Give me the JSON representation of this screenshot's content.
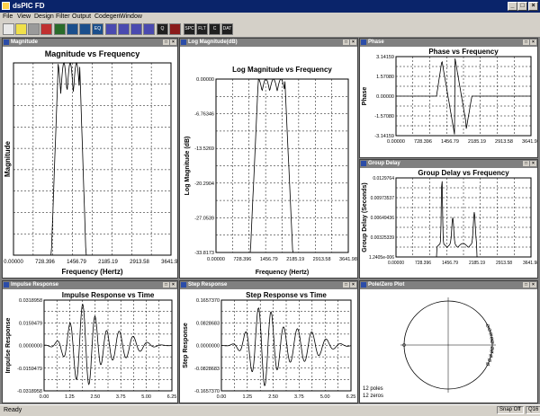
{
  "app": {
    "title": "dsPIC FD"
  },
  "menu": [
    "File",
    "View",
    "Design",
    "Filter",
    "Output",
    "Codegen",
    "Window"
  ],
  "toolbar": [
    {
      "icon": "new-icon",
      "color": "#e8e8e8",
      "label": ""
    },
    {
      "icon": "bulb-icon",
      "color": "#f0e04a",
      "label": ""
    },
    {
      "icon": "print-icon",
      "color": "#9a9a9a",
      "label": ""
    },
    {
      "icon": "stop-icon",
      "color": "#c03030",
      "label": ""
    },
    {
      "icon": "iir-icon",
      "color": "#2a6b2a",
      "label": ""
    },
    {
      "icon": "fir-icon",
      "color": "#1b4f8c",
      "label": ""
    },
    {
      "icon": "view-icon",
      "color": "#1b4f8c",
      "label": ""
    },
    {
      "icon": "eq-icon",
      "color": "#1b4f8c",
      "label": "EQ"
    },
    {
      "icon": "chart1-icon",
      "color": "#4a4ab0",
      "label": ""
    },
    {
      "icon": "chart2-icon",
      "color": "#4a4ab0",
      "label": ""
    },
    {
      "icon": "chart3-icon",
      "color": "#4a4ab0",
      "label": ""
    },
    {
      "icon": "chart4-icon",
      "color": "#4a4ab0",
      "label": ""
    },
    {
      "icon": "q-icon",
      "color": "#202020",
      "label": "Q"
    },
    {
      "icon": "grid-icon",
      "color": "#8a1a1a",
      "label": ""
    },
    {
      "icon": "spc-disk-icon",
      "color": "#202020",
      "label": "SPC"
    },
    {
      "icon": "flt-disk-icon",
      "color": "#202020",
      "label": "FLT"
    },
    {
      "icon": "c-disk-icon",
      "color": "#202020",
      "label": "C"
    },
    {
      "icon": "dat-disk-icon",
      "color": "#202020",
      "label": "DAT"
    }
  ],
  "toolbar_labels": {
    "spc": "SPC",
    "flt": "FLT",
    "c": "C",
    "dat": "DAT"
  },
  "windows": {
    "magnitude": {
      "caption": "Magnitude",
      "title": "Magnitude vs Frequency",
      "xlabel": "Frequency (Hertz)",
      "ylabel": "Magnitude",
      "xticks": [
        "0.00000",
        "728.396",
        "1456.79",
        "2185.19",
        "2913.58",
        "3641.98"
      ],
      "yticks": []
    },
    "logmag": {
      "caption": "Log Magnitude(dB)",
      "title": "Log Magnitude vs Frequency",
      "xlabel": "Frequency (Hertz)",
      "ylabel": "Log Magnitude (dB)",
      "xticks": [
        "0.00000",
        "728.396",
        "1456.79",
        "2185.19",
        "2913.58",
        "3641.98"
      ],
      "yticks": [
        "0.00000",
        "-6.76346",
        "-13.5269",
        "-20.2904",
        "-27.0539",
        "-33.8173"
      ]
    },
    "phase": {
      "caption": "Phase",
      "title": "Phase vs Frequency",
      "xlabel": "",
      "ylabel": "Phase",
      "xticks": [
        "0.00000",
        "728.396",
        "1456.79",
        "2185.19",
        "2913.58",
        "3641.98"
      ],
      "yticks": [
        "3.14159",
        "1.57080",
        "0.00000",
        "-1.57080",
        "-3.14159"
      ]
    },
    "group": {
      "caption": "Group Delay",
      "title": "Group Delay vs Frequency",
      "xlabel": "",
      "ylabel": "Group Delay (Seconds)",
      "xticks": [
        "0.00000",
        "728.396",
        "1456.79",
        "2185.19",
        "2913.58",
        "3641.98"
      ],
      "yticks": [
        "0.0129764",
        "0.00973537",
        "0.00649436",
        "0.00325339",
        "1.2405e-006"
      ]
    },
    "impulse": {
      "caption": "Impulse Response",
      "title": "Impulse Response vs Time",
      "xlabel": "",
      "ylabel": "Impulse Response",
      "xticks": [
        "0.00",
        "1.25",
        "2.50",
        "3.75",
        "5.00",
        "6.25"
      ],
      "yticks": [
        "0.0318958",
        "0.0159479",
        "0.0000000",
        "-0.0159479",
        "-0.0318958"
      ]
    },
    "step": {
      "caption": "Step Response",
      "title": "Step Response vs Time",
      "xlabel": "",
      "ylabel": "Step Response",
      "xticks": [
        "0.00",
        "1.25",
        "2.50",
        "3.75",
        "5.00",
        "6.25"
      ],
      "yticks": [
        "0.1657370",
        "0.0828683",
        "0.0000000",
        "-0.0828683",
        "-0.1657370"
      ]
    },
    "polezero": {
      "caption": "Pole/Zero Plot",
      "poles": "12 poles",
      "zeros": "12 zeros"
    }
  },
  "status": {
    "text": "Ready",
    "snap": "Snap Off",
    "mode": "Q16"
  }
}
